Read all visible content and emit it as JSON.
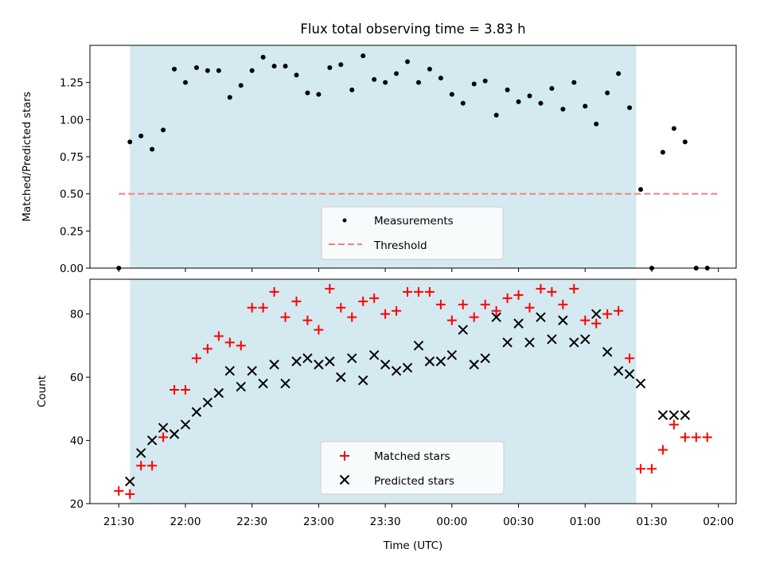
{
  "title": "Flux total observing time = 3.83 h",
  "xlabel": "Time (UTC)",
  "xticks": [
    {
      "t": 0,
      "label": "21:30"
    },
    {
      "t": 30,
      "label": "22:00"
    },
    {
      "t": 60,
      "label": "22:30"
    },
    {
      "t": 90,
      "label": "23:00"
    },
    {
      "t": 120,
      "label": "23:30"
    },
    {
      "t": 150,
      "label": "00:00"
    },
    {
      "t": 180,
      "label": "00:30"
    },
    {
      "t": 210,
      "label": "01:00"
    },
    {
      "t": 240,
      "label": "01:30"
    },
    {
      "t": 270,
      "label": "02:00"
    }
  ],
  "colors": {
    "shade": "#d4eaf0",
    "measurements": "#000000",
    "threshold": "#f08080",
    "matched": "#ff0000",
    "predicted": "#000000"
  },
  "chart_data": [
    {
      "type": "scatter",
      "ylabel": "Matched/Predicted stars",
      "ylim": [
        0,
        1.5
      ],
      "xlim_minutes_from_2130": [
        -13,
        278
      ],
      "yticks": [
        "0.00",
        "0.25",
        "0.50",
        "0.75",
        "1.00",
        "1.25"
      ],
      "shaded_interval": [
        "21:35",
        "01:23"
      ],
      "legend": {
        "position": "lower center",
        "entries": [
          "Measurements",
          "Threshold"
        ]
      },
      "threshold": {
        "name": "Threshold",
        "value": 0.5,
        "x_range": [
          "21:30",
          "02:00"
        ],
        "style": "dashed"
      },
      "series": [
        {
          "name": "Measurements",
          "marker": "dot",
          "time": [
            "21:30",
            "21:35",
            "21:40",
            "21:45",
            "21:50",
            "21:55",
            "22:00",
            "22:05",
            "22:10",
            "22:15",
            "22:20",
            "22:25",
            "22:30",
            "22:35",
            "22:40",
            "22:45",
            "22:50",
            "22:55",
            "23:00",
            "23:05",
            "23:10",
            "23:15",
            "23:20",
            "23:25",
            "23:30",
            "23:35",
            "23:40",
            "23:45",
            "23:50",
            "23:55",
            "00:00",
            "00:05",
            "00:10",
            "00:15",
            "00:20",
            "00:25",
            "00:30",
            "00:35",
            "00:40",
            "00:45",
            "00:50",
            "00:55",
            "01:00",
            "01:05",
            "01:10",
            "01:15",
            "01:20",
            "01:25",
            "01:30",
            "01:35",
            "01:40",
            "01:45",
            "01:50",
            "01:55"
          ],
          "values": [
            0.0,
            0.85,
            0.89,
            0.8,
            0.93,
            1.34,
            1.25,
            1.35,
            1.33,
            1.33,
            1.15,
            1.23,
            1.33,
            1.42,
            1.36,
            1.36,
            1.3,
            1.18,
            1.17,
            1.35,
            1.37,
            1.2,
            1.43,
            1.27,
            1.25,
            1.31,
            1.39,
            1.25,
            1.34,
            1.28,
            1.17,
            1.11,
            1.24,
            1.26,
            1.03,
            1.2,
            1.12,
            1.16,
            1.11,
            1.21,
            1.07,
            1.25,
            1.09,
            0.97,
            1.18,
            1.31,
            1.08,
            0.53,
            0.0,
            0.78,
            0.94,
            0.85,
            0.0,
            0.0
          ]
        }
      ]
    },
    {
      "type": "scatter",
      "ylabel": "Count",
      "ylim": [
        20,
        91
      ],
      "yticks": [
        "20",
        "40",
        "60",
        "80"
      ],
      "shaded_interval": [
        "21:35",
        "01:23"
      ],
      "legend": {
        "position": "lower center",
        "entries": [
          "Matched stars",
          "Predicted stars"
        ]
      },
      "series": [
        {
          "name": "Matched stars",
          "marker": "plus",
          "time": [
            "21:30",
            "21:35",
            "21:40",
            "21:45",
            "21:50",
            "21:55",
            "22:00",
            "22:05",
            "22:10",
            "22:15",
            "22:20",
            "22:25",
            "22:30",
            "22:35",
            "22:40",
            "22:45",
            "22:50",
            "22:55",
            "23:00",
            "23:05",
            "23:10",
            "23:15",
            "23:20",
            "23:25",
            "23:30",
            "23:35",
            "23:40",
            "23:45",
            "23:50",
            "23:55",
            "00:00",
            "00:05",
            "00:10",
            "00:15",
            "00:20",
            "00:25",
            "00:30",
            "00:35",
            "00:40",
            "00:45",
            "00:50",
            "00:55",
            "01:00",
            "01:05",
            "01:10",
            "01:15",
            "01:20",
            "01:25",
            "01:30",
            "01:35",
            "01:40",
            "01:45",
            "01:50",
            "01:55"
          ],
          "values": [
            24,
            23,
            32,
            32,
            41,
            56,
            56,
            66,
            69,
            73,
            71,
            70,
            82,
            82,
            87,
            79,
            84,
            78,
            75,
            88,
            82,
            79,
            84,
            85,
            80,
            81,
            87,
            87,
            87,
            83,
            78,
            83,
            79,
            83,
            81,
            85,
            86,
            82,
            88,
            87,
            83,
            88,
            78,
            77,
            80,
            81,
            66,
            31,
            31,
            37,
            45,
            41,
            41,
            41
          ]
        },
        {
          "name": "Predicted stars",
          "marker": "x",
          "time": [
            "21:35",
            "21:40",
            "21:45",
            "21:50",
            "21:55",
            "22:00",
            "22:05",
            "22:10",
            "22:15",
            "22:20",
            "22:25",
            "22:30",
            "22:35",
            "22:40",
            "22:45",
            "22:50",
            "22:55",
            "23:00",
            "23:05",
            "23:10",
            "23:15",
            "23:20",
            "23:25",
            "23:30",
            "23:35",
            "23:40",
            "23:45",
            "23:50",
            "23:55",
            "00:00",
            "00:05",
            "00:10",
            "00:15",
            "00:20",
            "00:25",
            "00:30",
            "00:35",
            "00:40",
            "00:45",
            "00:50",
            "00:55",
            "01:00",
            "01:05",
            "01:10",
            "01:15",
            "01:20",
            "01:25",
            "01:35",
            "01:40",
            "01:45"
          ],
          "values": [
            27,
            36,
            40,
            44,
            42,
            45,
            49,
            52,
            55,
            62,
            57,
            62,
            58,
            64,
            58,
            65,
            66,
            64,
            65,
            60,
            66,
            59,
            67,
            64,
            62,
            63,
            70,
            65,
            65,
            67,
            75,
            64,
            66,
            79,
            71,
            77,
            71,
            79,
            72,
            78,
            71,
            72,
            80,
            68,
            62,
            61,
            58,
            48,
            48,
            48
          ]
        }
      ]
    }
  ]
}
